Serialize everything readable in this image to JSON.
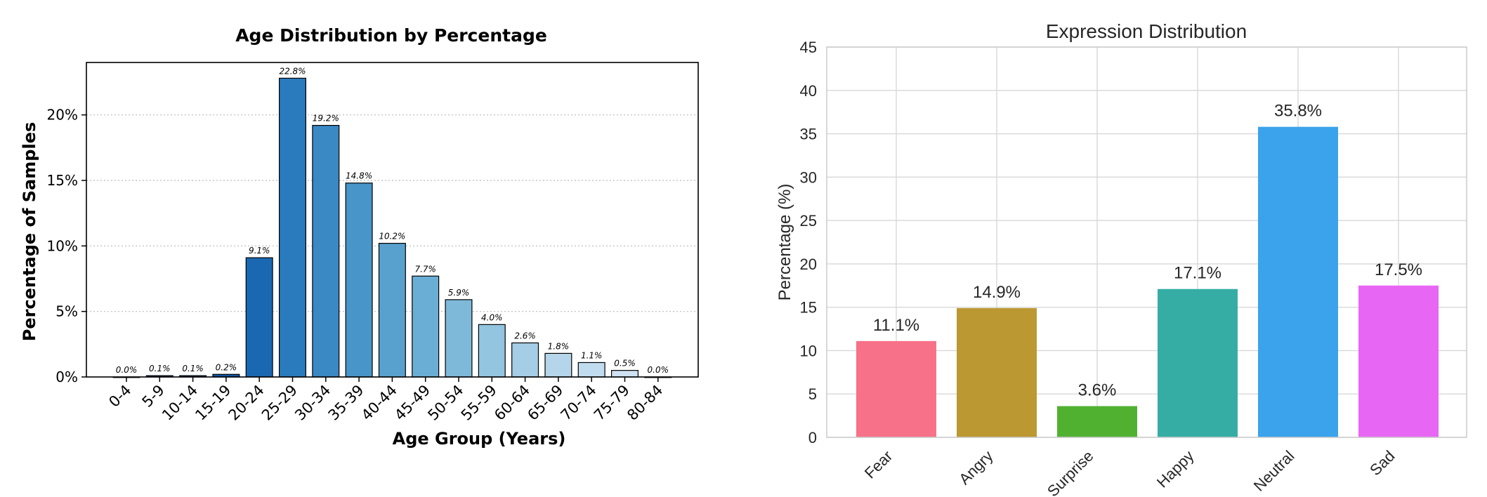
{
  "chart_data": [
    {
      "type": "bar",
      "title": "Age Distribution by Percentage",
      "xlabel": "Age Group (Years)",
      "ylabel": "Percentage of Samples",
      "categories": [
        "0-4",
        "5-9",
        "10-14",
        "15-19",
        "20-24",
        "25-29",
        "30-34",
        "35-39",
        "40-44",
        "45-49",
        "50-54",
        "55-59",
        "60-64",
        "65-69",
        "70-74",
        "75-79",
        "80-84"
      ],
      "values": [
        0.0,
        0.1,
        0.1,
        0.2,
        9.1,
        22.8,
        19.2,
        14.8,
        10.2,
        7.7,
        5.9,
        4.0,
        2.6,
        1.8,
        1.1,
        0.5,
        0.0
      ],
      "data_labels": [
        "0.0%",
        "0.1%",
        "0.1%",
        "0.2%",
        "9.1%",
        "22.8%",
        "19.2%",
        "14.8%",
        "10.2%",
        "7.7%",
        "5.9%",
        "4.0%",
        "2.6%",
        "1.8%",
        "1.1%",
        "0.5%",
        "0.0%"
      ],
      "ylim": [
        0,
        24
      ],
      "yticks": [
        0,
        5,
        10,
        15,
        20
      ],
      "ytick_labels": [
        "0%",
        "5%",
        "10%",
        "15%",
        "20%"
      ],
      "grid": "horizontal-dotted",
      "colors": [
        "#08306b",
        "#083a7a",
        "#0b4a8f",
        "#0f56a1",
        "#1a68b2",
        "#2a7bbd",
        "#3a88c4",
        "#4895c9",
        "#58a1ce",
        "#6aadd5",
        "#7fb9da",
        "#93c5e0",
        "#a5cde5",
        "#b5d5ea",
        "#c2dcef",
        "#cfe2f3",
        "#dbe9f6"
      ]
    },
    {
      "type": "bar",
      "title": "Expression Distribution",
      "xlabel": "",
      "ylabel": "Percentage (%)",
      "categories": [
        "Fear",
        "Angry",
        "Surprise",
        "Happy",
        "Neutral",
        "Sad"
      ],
      "values": [
        11.1,
        14.9,
        3.6,
        17.1,
        35.8,
        17.5
      ],
      "data_labels": [
        "11.1%",
        "14.9%",
        "3.6%",
        "17.1%",
        "35.8%",
        "17.5%"
      ],
      "ylim": [
        0,
        45
      ],
      "yticks": [
        0,
        5,
        10,
        15,
        20,
        25,
        30,
        35,
        40,
        45
      ],
      "ytick_labels": [
        "0",
        "5",
        "10",
        "15",
        "20",
        "25",
        "30",
        "35",
        "40",
        "45"
      ],
      "grid": "both",
      "colors": [
        "#f77189",
        "#bb9832",
        "#50b131",
        "#36ada4",
        "#3ba3ec",
        "#e866f4"
      ]
    }
  ]
}
